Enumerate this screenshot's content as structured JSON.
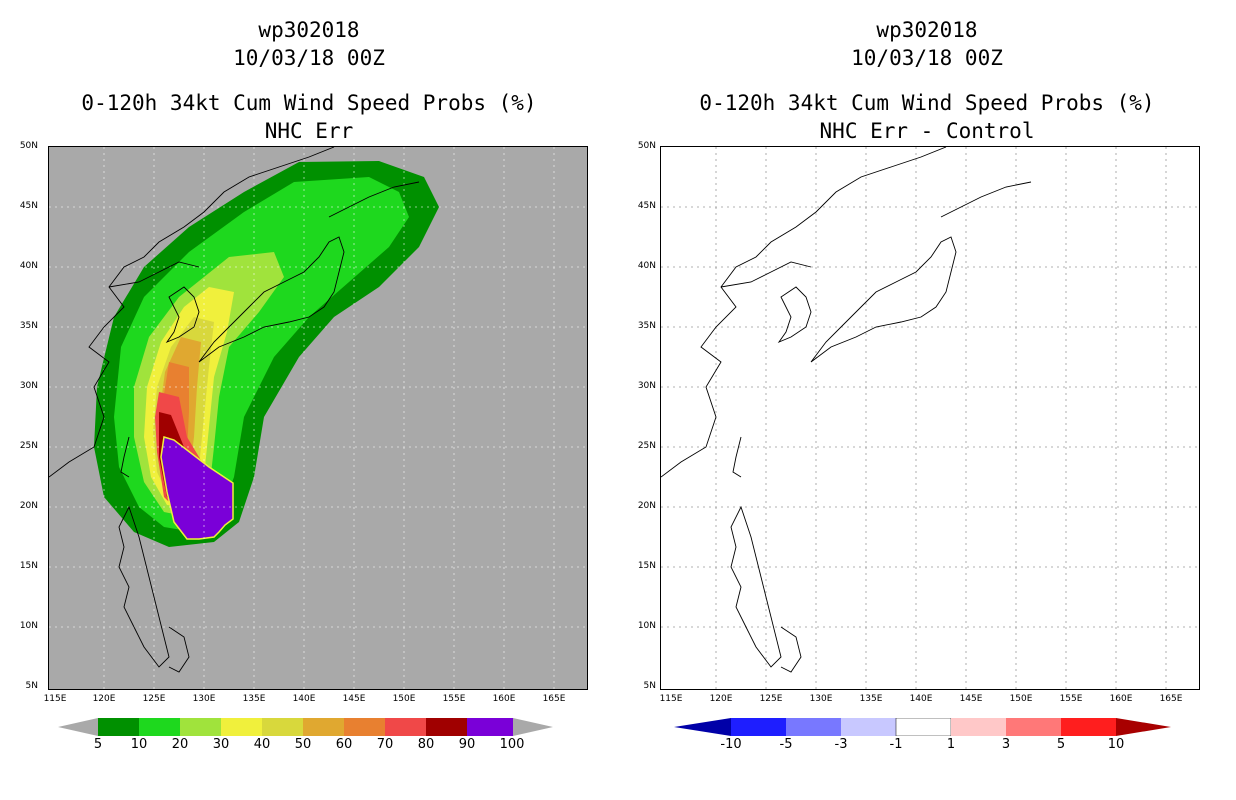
{
  "left_panel": {
    "storm_id": "wp302018",
    "datetime": "10/03/18 00Z",
    "product": "0-120h 34kt Cum Wind Speed Probs (%)",
    "subtitle": "NHC Err",
    "background_color": "#a9a9a9",
    "colorbar": {
      "levels": [
        "5",
        "10",
        "20",
        "30",
        "40",
        "50",
        "60",
        "70",
        "80",
        "90",
        "100"
      ],
      "colors": [
        "#009000",
        "#1ed81e",
        "#a0e33c",
        "#f0f03c",
        "#d8d83c",
        "#e0a830",
        "#e88030",
        "#f04848",
        "#a00000",
        "#7a00d8"
      ]
    }
  },
  "right_panel": {
    "storm_id": "wp302018",
    "datetime": "10/03/18 00Z",
    "product": "0-120h 34kt Cum Wind Speed Probs (%)",
    "subtitle": "NHC Err - Control",
    "background_color": "#ffffff",
    "colorbar": {
      "levels": [
        "-10",
        "-5",
        "-3",
        "-1",
        "1",
        "3",
        "5",
        "10"
      ],
      "colors": [
        "#0000a8",
        "#1e1eff",
        "#7878ff",
        "#c8c8ff",
        "#ffffff",
        "#ffc8c8",
        "#ff7878",
        "#ff1e1e",
        "#a80000"
      ]
    }
  },
  "axes": {
    "lat_labels": [
      "50N",
      "45N",
      "40N",
      "35N",
      "30N",
      "25N",
      "20N",
      "15N",
      "10N",
      "5N"
    ],
    "lon_labels": [
      "115E",
      "120E",
      "125E",
      "130E",
      "135E",
      "140E",
      "145E",
      "150E",
      "155E",
      "160E",
      "165E"
    ]
  }
}
